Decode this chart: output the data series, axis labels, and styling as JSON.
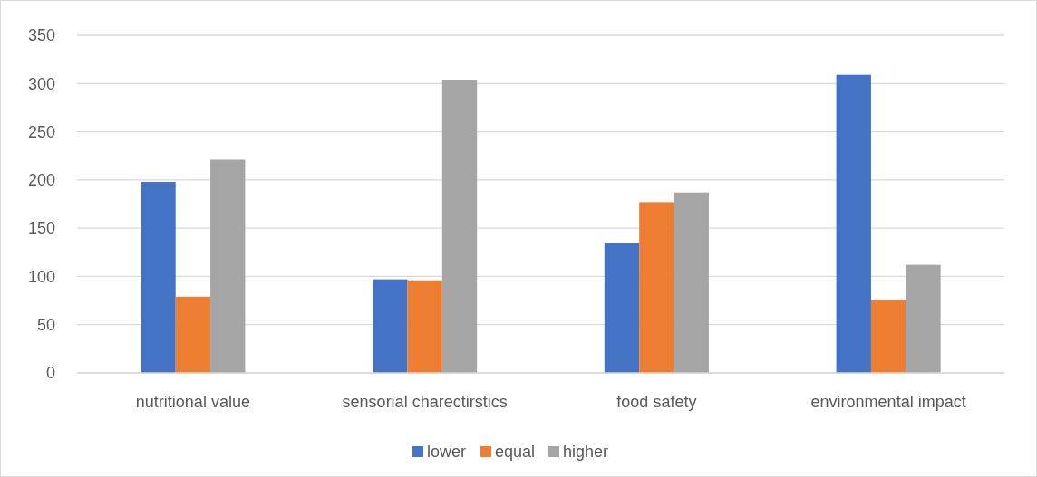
{
  "chart_data": {
    "type": "bar",
    "categories": [
      "nutritional value",
      "sensorial charectirstics",
      "food safety",
      "environmental impact"
    ],
    "series": [
      {
        "name": "lower",
        "color": "#4472c4",
        "values": [
          198,
          97,
          135,
          309
        ]
      },
      {
        "name": "equal",
        "color": "#ed7d31",
        "values": [
          79,
          96,
          177,
          76
        ]
      },
      {
        "name": "higher",
        "color": "#a5a5a5",
        "values": [
          221,
          304,
          187,
          112
        ]
      }
    ],
    "ylim": [
      0,
      350
    ],
    "yticks": [
      0,
      50,
      100,
      150,
      200,
      250,
      300,
      350
    ],
    "grid": "y",
    "legend": "bottom"
  }
}
